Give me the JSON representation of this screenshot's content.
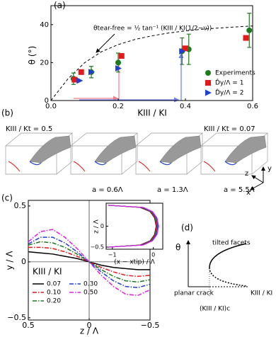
{
  "panel_labels": [
    "(a)",
    "(b)",
    "(c)",
    "(d)"
  ],
  "chart_data": [
    {
      "type": "scatter",
      "xlabel": "KIII / KI",
      "ylabel": "θ (°)",
      "xlim": [
        0,
        0.6
      ],
      "ylim": [
        0,
        50
      ],
      "xticks": [
        {
          "value": 0,
          "label": "0.0"
        },
        0.2,
        0.4,
        0.6
      ],
      "yticks": [
        0,
        20,
        40
      ],
      "legend": "lower right",
      "series": [
        {
          "name": "Experiments",
          "color": "#1f7a1f",
          "marker": "circle",
          "x": [
            0.067,
            0.12,
            0.2,
            0.39,
            0.41,
            0.59
          ],
          "values": [
            11.5,
            15,
            20,
            26,
            27,
            37
          ],
          "errors": [
            3,
            3,
            5,
            7,
            8,
            9
          ]
        },
        {
          "name": "D̂y/Λ = 1",
          "color": "#e31a1c",
          "marker": "square",
          "x": [
            0.07,
            0.09,
            0.21,
            0.4,
            0.58
          ],
          "values": [
            11,
            15,
            23.5,
            27.5,
            33
          ]
        },
        {
          "name": "D̂y/Λ = 2",
          "color": "#1f3fd0",
          "marker": "triangle",
          "x": [
            0.085,
            0.12,
            0.2,
            0.39
          ],
          "values": [
            10.5,
            15,
            17,
            26
          ]
        }
      ],
      "curve": {
        "label": "θtear-free = ½ tan⁻¹ (KIII / KI(1/2−ν))",
        "color": "#000",
        "x": [
          0,
          0.05,
          0.1,
          0.15,
          0.2,
          0.25,
          0.3,
          0.35,
          0.4,
          0.45,
          0.5,
          0.55,
          0.6
        ],
        "values": [
          0,
          11.3,
          19.9,
          25.7,
          29.5,
          32.2,
          34.1,
          35.6,
          36.7,
          37.6,
          38.2,
          38.8,
          39.3
        ]
      }
    },
    {
      "type": "line",
      "xlabel": "z / Λ",
      "ylabel": "y / Λ",
      "legend_title": "KIII / KI",
      "xlim": [
        0.5,
        -0.5
      ],
      "ylim": [
        -0.52,
        0.55
      ],
      "xticks": [
        0.5,
        0,
        {
          "value": -0.5,
          "label": "−0.5"
        }
      ],
      "yticks": [
        {
          "value": -0.5,
          "label": "−0.5"
        },
        0,
        0.5
      ],
      "x": [
        0.5,
        0.4,
        0.3,
        0.2,
        0.1,
        0,
        -0.1,
        -0.2,
        -0.3,
        -0.4,
        -0.5
      ],
      "series": [
        {
          "name": "0.07",
          "color": "#000000",
          "style": "solid",
          "values": [
            0.09,
            0.08,
            0.07,
            0.05,
            0.03,
            0,
            -0.03,
            -0.05,
            -0.06,
            -0.07,
            -0.07
          ]
        },
        {
          "name": "0.10",
          "color": "#e31a1c",
          "style": "dashdot",
          "values": [
            0.13,
            0.13,
            0.12,
            0.09,
            0.05,
            0,
            -0.05,
            -0.09,
            -0.12,
            -0.13,
            -0.12
          ]
        },
        {
          "name": "0.20",
          "color": "#1f7a1f",
          "style": "dashdot",
          "values": [
            0.15,
            0.18,
            0.17,
            0.13,
            0.07,
            0,
            -0.07,
            -0.13,
            -0.17,
            -0.18,
            -0.16
          ]
        },
        {
          "name": "0.30",
          "color": "#1f3fd0",
          "style": "dashdot",
          "values": [
            0.16,
            0.22,
            0.22,
            0.17,
            0.09,
            0,
            -0.09,
            -0.17,
            -0.22,
            -0.23,
            -0.2
          ]
        },
        {
          "name": "0.50",
          "color": "#e020e0",
          "style": "dashdot",
          "values": [
            0.18,
            0.27,
            0.29,
            0.22,
            0.12,
            0,
            -0.12,
            -0.22,
            -0.29,
            -0.3,
            -0.25
          ]
        }
      ]
    },
    {
      "type": "inset",
      "xlabel": "(x − xtip) / Λ",
      "ylabel": "z / Λ",
      "xlim": [
        -1.15,
        0.23
      ],
      "ylim": [
        -0.55,
        0.55
      ],
      "xticks": [
        {
          "value": -1,
          "label": "−1"
        },
        0
      ],
      "yticks": [
        {
          "value": -0.5,
          "label": "−0.5"
        },
        0
      ],
      "z": [
        -0.5,
        -0.45,
        -0.35,
        -0.2,
        0,
        0.2,
        0.35,
        0.45,
        0.5
      ],
      "series": [
        {
          "color": "#000000",
          "values": [
            -1.1,
            -0.32,
            -0.08,
            0.03,
            0.07,
            0.03,
            -0.08,
            -0.32,
            -1.1
          ]
        },
        {
          "color": "#e31a1c",
          "values": [
            -1.1,
            -0.3,
            -0.07,
            0.04,
            0.08,
            0.04,
            -0.07,
            -0.3,
            -1.1
          ]
        },
        {
          "color": "#1f7a1f",
          "values": [
            -1.1,
            -0.28,
            -0.05,
            0.06,
            0.1,
            0.06,
            -0.05,
            -0.28,
            -1.1
          ]
        },
        {
          "color": "#1f3fd0",
          "values": [
            -1.1,
            -0.26,
            -0.04,
            0.07,
            0.11,
            0.07,
            -0.04,
            -0.26,
            -1.1
          ]
        },
        {
          "color": "#e020e0",
          "values": [
            -1.1,
            -0.24,
            -0.02,
            0.09,
            0.13,
            0.09,
            -0.02,
            -0.24,
            -1.1
          ]
        }
      ]
    }
  ],
  "panel_b": {
    "left_label": "KIII / Kt = 0.5",
    "right_label": "KIII / Kt = 0.07",
    "box_labels": [
      "a = 0.6Λ",
      "a = 1.3Λ",
      "a = 5.5Λ"
    ],
    "axes": [
      "z",
      "y",
      "x"
    ]
  },
  "panel_d": {
    "y_label": "θ",
    "upper": "tilted facets",
    "lower": "planar crack",
    "critical": "(KIII / KI)c",
    "x_label": "KIII / KI"
  }
}
